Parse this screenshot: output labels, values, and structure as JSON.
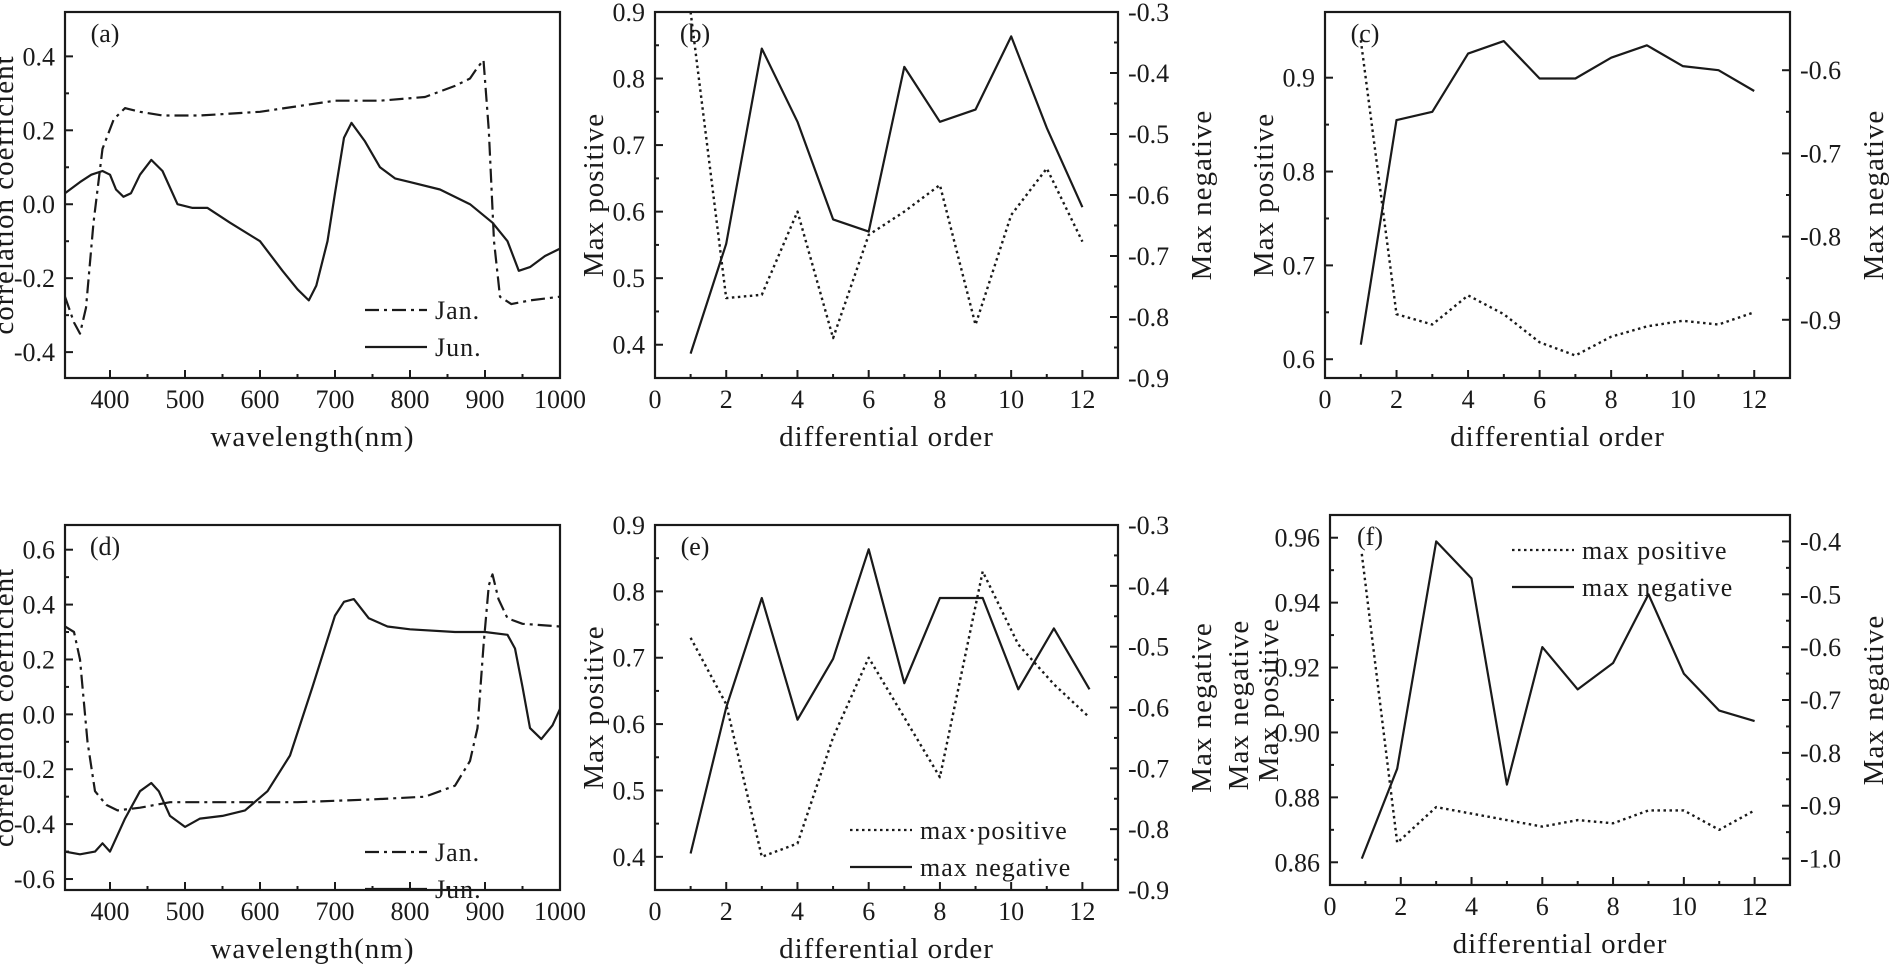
{
  "chart_data": [
    {
      "type": "line",
      "panel_label": "(a)",
      "xlabel": "wavelength(nm)",
      "ylabel": "correlation coefficient",
      "xlim": [
        340,
        1000
      ],
      "ylim": [
        -0.47,
        0.52
      ],
      "xticks": [
        400,
        500,
        600,
        700,
        800,
        900,
        1000
      ],
      "xtick_labels": [
        "400",
        "500",
        "600",
        "700",
        "800",
        "900",
        "1000"
      ],
      "yticks": [
        -0.4,
        -0.2,
        0.0,
        0.2,
        0.4
      ],
      "ytick_labels": [
        "-0.4",
        "-0.2",
        "0.0",
        "0.2",
        "0.4"
      ],
      "legend_position": "bottom-right",
      "series": [
        {
          "name": "Jan.",
          "style": "dashdot",
          "x": [
            340,
            352,
            360,
            368,
            378,
            390,
            405,
            420,
            440,
            470,
            520,
            600,
            700,
            760,
            820,
            860,
            880,
            890,
            898,
            905,
            912,
            920,
            935,
            960,
            1000
          ],
          "y": [
            -0.25,
            -0.32,
            -0.35,
            -0.28,
            -0.05,
            0.15,
            0.23,
            0.26,
            0.25,
            0.24,
            0.24,
            0.25,
            0.28,
            0.28,
            0.29,
            0.32,
            0.34,
            0.37,
            0.39,
            0.2,
            -0.1,
            -0.25,
            -0.27,
            -0.26,
            -0.25
          ]
        },
        {
          "name": "Jun.",
          "style": "solid",
          "x": [
            340,
            360,
            375,
            390,
            400,
            408,
            418,
            428,
            440,
            455,
            470,
            490,
            510,
            530,
            560,
            600,
            630,
            650,
            665,
            675,
            690,
            700,
            712,
            722,
            740,
            760,
            780,
            800,
            840,
            880,
            910,
            930,
            945,
            960,
            980,
            1000
          ],
          "y": [
            0.03,
            0.06,
            0.08,
            0.09,
            0.08,
            0.04,
            0.02,
            0.03,
            0.08,
            0.12,
            0.09,
            0.0,
            -0.01,
            -0.01,
            -0.05,
            -0.1,
            -0.18,
            -0.23,
            -0.26,
            -0.22,
            -0.1,
            0.03,
            0.18,
            0.22,
            0.17,
            0.1,
            0.07,
            0.06,
            0.04,
            0.0,
            -0.05,
            -0.1,
            -0.18,
            -0.17,
            -0.14,
            -0.12
          ]
        }
      ]
    },
    {
      "type": "line",
      "panel_label": "(b)",
      "xlabel": "differential order",
      "ylabel": "Max positive",
      "y2label": "Max negative",
      "xlim": [
        0,
        13
      ],
      "ylim": [
        0.35,
        0.9
      ],
      "y2lim": [
        -0.9,
        -0.3
      ],
      "xticks": [
        0,
        2,
        4,
        6,
        8,
        10,
        12
      ],
      "xtick_labels": [
        "0",
        "2",
        "4",
        "6",
        "8",
        "10",
        "12"
      ],
      "yticks": [
        0.4,
        0.5,
        0.6,
        0.7,
        0.8,
        0.9
      ],
      "ytick_labels": [
        "0.4",
        "0.5",
        "0.6",
        "0.7",
        "0.8",
        "0.9"
      ],
      "y2ticks": [
        -0.9,
        -0.8,
        -0.7,
        -0.6,
        -0.5,
        -0.4,
        -0.3
      ],
      "y2tick_labels": [
        "-0.9",
        "-0.8",
        "-0.7",
        "-0.6",
        "-0.5",
        "-0.4",
        "-0.3"
      ],
      "series": [
        {
          "name": "max positive",
          "style": "dotted",
          "axis": "left",
          "x": [
            1,
            2,
            3,
            4,
            5,
            6,
            7,
            8,
            9,
            10,
            11,
            12
          ],
          "y": [
            0.9,
            0.47,
            0.475,
            0.6,
            0.41,
            0.565,
            0.6,
            0.64,
            0.43,
            0.595,
            0.665,
            0.555
          ]
        },
        {
          "name": "max negative",
          "style": "solid",
          "axis": "right",
          "x": [
            1,
            2,
            3,
            4,
            5,
            6,
            7,
            8,
            9,
            10,
            11,
            12
          ],
          "y": [
            -0.86,
            -0.68,
            -0.36,
            -0.48,
            -0.64,
            -0.66,
            -0.39,
            -0.48,
            -0.46,
            -0.34,
            -0.49,
            -0.62
          ]
        }
      ]
    },
    {
      "type": "line",
      "panel_label": "(c)",
      "xlabel": "differential order",
      "ylabel": "Max positive",
      "y2label": "Max negative",
      "xlim": [
        0,
        13
      ],
      "ylim": [
        0.58,
        0.97
      ],
      "y2lim": [
        -0.97,
        -0.53
      ],
      "xticks": [
        0,
        2,
        4,
        6,
        8,
        10,
        12
      ],
      "xtick_labels": [
        "0",
        "2",
        "4",
        "6",
        "8",
        "10",
        "12"
      ],
      "yticks": [
        0.6,
        0.7,
        0.8,
        0.9
      ],
      "ytick_labels": [
        "0.6",
        "0.7",
        "0.8",
        "0.9"
      ],
      "y2ticks": [
        -0.9,
        -0.8,
        -0.7,
        -0.6
      ],
      "y2tick_labels": [
        "-0.9",
        "-0.8",
        "-0.7",
        "-0.6"
      ],
      "series": [
        {
          "name": "max positive",
          "style": "dotted",
          "axis": "left",
          "x": [
            1,
            2,
            3,
            4,
            5,
            6,
            7,
            8,
            9,
            10,
            11,
            12
          ],
          "y": [
            0.94,
            0.648,
            0.637,
            0.668,
            0.648,
            0.618,
            0.604,
            0.624,
            0.635,
            0.641,
            0.637,
            0.65
          ]
        },
        {
          "name": "max negative",
          "style": "solid",
          "axis": "right",
          "x": [
            1,
            2,
            3,
            4,
            5,
            6,
            7,
            8,
            9,
            10,
            11,
            12
          ],
          "y": [
            -0.93,
            -0.66,
            -0.65,
            -0.58,
            -0.565,
            -0.61,
            -0.61,
            -0.585,
            -0.57,
            -0.595,
            -0.6,
            -0.625
          ]
        }
      ]
    },
    {
      "type": "line",
      "panel_label": "(d)",
      "xlabel": "wavelength(nm)",
      "ylabel": "correlation coefficient",
      "xlim": [
        340,
        1000
      ],
      "ylim": [
        -0.64,
        0.69
      ],
      "xticks": [
        400,
        500,
        600,
        700,
        800,
        900,
        1000
      ],
      "xtick_labels": [
        "400",
        "500",
        "600",
        "700",
        "800",
        "900",
        "1000"
      ],
      "yticks": [
        -0.6,
        -0.4,
        -0.2,
        0.0,
        0.2,
        0.4,
        0.6
      ],
      "ytick_labels": [
        "-0.6",
        "-0.4",
        "-0.2",
        "0.0",
        "0.2",
        "0.4",
        "0.6"
      ],
      "legend_position": "bottom-right",
      "series": [
        {
          "name": "Jan.",
          "style": "dashdot",
          "x": [
            340,
            352,
            360,
            370,
            380,
            395,
            410,
            440,
            480,
            550,
            650,
            750,
            820,
            860,
            880,
            890,
            898,
            905,
            910,
            918,
            930,
            950,
            1000
          ],
          "y": [
            0.32,
            0.3,
            0.2,
            -0.1,
            -0.28,
            -0.33,
            -0.35,
            -0.34,
            -0.32,
            -0.32,
            -0.32,
            -0.31,
            -0.3,
            -0.26,
            -0.17,
            -0.05,
            0.25,
            0.47,
            0.51,
            0.42,
            0.35,
            0.33,
            0.32
          ]
        },
        {
          "name": "Jun.",
          "style": "solid",
          "x": [
            340,
            360,
            380,
            390,
            400,
            410,
            420,
            440,
            455,
            465,
            480,
            500,
            520,
            550,
            580,
            610,
            640,
            670,
            700,
            712,
            725,
            745,
            770,
            800,
            860,
            900,
            930,
            940,
            950,
            960,
            975,
            990,
            1000
          ],
          "y": [
            -0.5,
            -0.51,
            -0.5,
            -0.47,
            -0.5,
            -0.44,
            -0.38,
            -0.28,
            -0.25,
            -0.28,
            -0.37,
            -0.41,
            -0.38,
            -0.37,
            -0.35,
            -0.28,
            -0.15,
            0.1,
            0.36,
            0.41,
            0.42,
            0.35,
            0.32,
            0.31,
            0.3,
            0.3,
            0.29,
            0.24,
            0.1,
            -0.05,
            -0.09,
            -0.04,
            0.02
          ]
        }
      ]
    },
    {
      "type": "line",
      "panel_label": "(e)",
      "xlabel": "differential order",
      "ylabel": "Max positive",
      "y2label": "Max negative",
      "xlim": [
        0,
        13
      ],
      "ylim": [
        0.35,
        0.9
      ],
      "y2lim": [
        -0.9,
        -0.3
      ],
      "xticks": [
        0,
        2,
        4,
        6,
        8,
        10,
        12
      ],
      "xtick_labels": [
        "0",
        "2",
        "4",
        "6",
        "8",
        "10",
        "12"
      ],
      "yticks": [
        0.4,
        0.5,
        0.6,
        0.7,
        0.8,
        0.9
      ],
      "ytick_labels": [
        "0.4",
        "0.5",
        "0.6",
        "0.7",
        "0.8",
        "0.9"
      ],
      "y2ticks": [
        -0.9,
        -0.8,
        -0.7,
        -0.6,
        -0.5,
        -0.4,
        -0.3
      ],
      "y2tick_labels": [
        "-0.9",
        "-0.8",
        "-0.7",
        "-0.6",
        "-0.5",
        "-0.4",
        "-0.3"
      ],
      "legend_position": "bottom-right",
      "series": [
        {
          "name": "max positive",
          "legend_label": "max·positive",
          "style": "dotted",
          "axis": "left",
          "x": [
            1,
            2,
            3,
            4,
            5,
            6,
            7,
            8,
            9.2,
            10.2,
            11.2,
            12.2
          ],
          "y": [
            0.73,
            0.63,
            0.4,
            0.42,
            0.58,
            0.7,
            0.61,
            0.52,
            0.83,
            0.72,
            0.66,
            0.61
          ]
        },
        {
          "name": "max negative",
          "style": "solid",
          "axis": "right",
          "x": [
            1,
            2,
            3,
            4,
            5,
            6,
            7,
            8,
            9.2,
            10.2,
            11.2,
            12.2
          ],
          "y": [
            -0.84,
            -0.6,
            -0.42,
            -0.62,
            -0.52,
            -0.34,
            -0.56,
            -0.42,
            -0.42,
            -0.57,
            -0.47,
            -0.57
          ]
        }
      ]
    },
    {
      "type": "line",
      "panel_label": "(f)",
      "xlabel": "differential order",
      "ylabel": "Max positive",
      "ylabel_overlay": "Max negative",
      "y2label": "Max negative",
      "xlim": [
        0,
        13
      ],
      "ylim": [
        0.853,
        0.967
      ],
      "y2lim": [
        -1.05,
        -0.35
      ],
      "xticks": [
        0,
        2,
        4,
        6,
        8,
        10,
        12
      ],
      "xtick_labels": [
        "0",
        "2",
        "4",
        "6",
        "8",
        "10",
        "12"
      ],
      "yticks": [
        0.86,
        0.88,
        0.9,
        0.92,
        0.94,
        0.96
      ],
      "ytick_labels": [
        "0.86",
        "0.88",
        "0.90",
        "0.92",
        "0.94",
        "0.96"
      ],
      "y2ticks": [
        -1.0,
        -0.9,
        -0.8,
        -0.7,
        -0.6,
        -0.5,
        -0.4
      ],
      "y2tick_labels": [
        "-1.0",
        "-0.9",
        "-0.8",
        "-0.7",
        "-0.6",
        "-0.5",
        "-0.4"
      ],
      "legend_position": "top-right",
      "series": [
        {
          "name": "max positive",
          "style": "dotted",
          "axis": "left",
          "x": [
            0.9,
            1.9,
            3,
            4,
            5,
            6,
            7,
            8,
            9,
            10,
            11,
            12
          ],
          "y": [
            0.955,
            0.866,
            0.877,
            0.875,
            0.873,
            0.871,
            0.873,
            0.872,
            0.876,
            0.876,
            0.87,
            0.876
          ]
        },
        {
          "name": "max negative",
          "style": "solid",
          "axis": "right",
          "x": [
            0.9,
            1.9,
            3,
            4,
            5,
            6,
            7,
            8,
            9,
            10,
            11,
            12
          ],
          "y": [
            -1.0,
            -0.83,
            -0.4,
            -0.47,
            -0.86,
            -0.6,
            -0.68,
            -0.63,
            -0.5,
            -0.65,
            -0.72,
            -0.74
          ]
        }
      ]
    }
  ]
}
